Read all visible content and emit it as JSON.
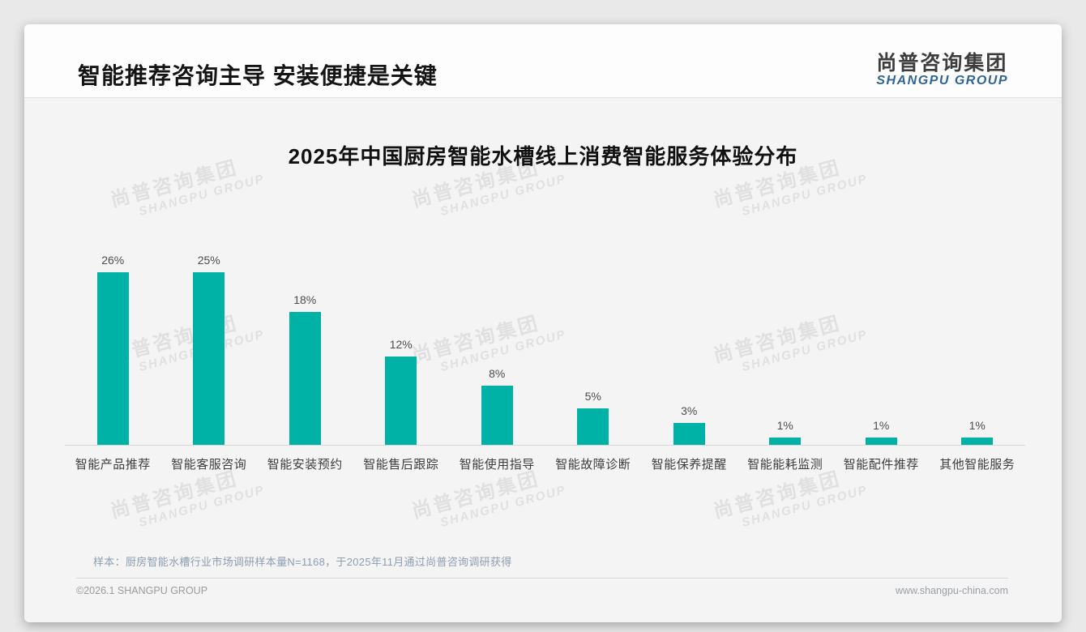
{
  "header": {
    "title": "智能推荐咨询主导 安装便捷是关键",
    "logo_cn": "尚普咨询集团",
    "logo_en": "SHANGPU GROUP"
  },
  "watermark": {
    "line1": "尚普咨询集团",
    "line2": "SHANGPU GROUP"
  },
  "chart_data": {
    "type": "bar",
    "title": "2025年中国厨房智能水槽线上消费智能服务体验分布",
    "categories": [
      "智能产品推荐",
      "智能客服咨询",
      "智能安装预约",
      "智能售后跟踪",
      "智能使用指导",
      "智能故障诊断",
      "智能保养提醒",
      "智能能耗监测",
      "智能配件推荐",
      "其他智能服务"
    ],
    "values": [
      26,
      25,
      18,
      12,
      8,
      5,
      3,
      1,
      1,
      1
    ],
    "unit": "%",
    "data_labels": true,
    "bar_color": "#00B1A5",
    "ylim": [
      0,
      28
    ],
    "grid": false,
    "axis_visible": "x-baseline-only",
    "legend": "none"
  },
  "footer": {
    "sample_note": "样本：厨房智能水槽行业市场调研样本量N=1168，于2025年11月通过尚普咨询调研获得",
    "copyright": "©2026.1 SHANGPU GROUP",
    "website": "www.shangpu-china.com"
  },
  "colors": {
    "accent_teal": "#00B1A5",
    "logo_blue": "#2f6496",
    "note_blue_gray": "#8d9db2",
    "page_background": "#e9e9e9",
    "card_background": "#f4f4f4"
  }
}
